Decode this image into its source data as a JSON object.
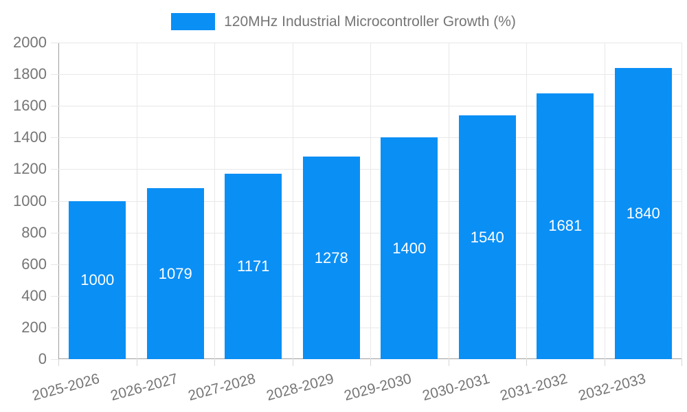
{
  "legend": {
    "label": "120MHz Industrial Microcontroller Growth (%)"
  },
  "chart_data": {
    "type": "bar",
    "title": "120MHz Industrial Microcontroller Growth (%)",
    "categories": [
      "2025-2026",
      "2026-2027",
      "2027-2028",
      "2028-2029",
      "2029-2030",
      "2030-2031",
      "2031-2032",
      "2032-2033"
    ],
    "values": [
      1000,
      1079,
      1171,
      1278,
      1400,
      1540,
      1681,
      1840
    ],
    "value_labels": [
      "1000",
      "1079",
      "1171",
      "1278",
      "1400",
      "1540",
      "1681",
      "1840"
    ],
    "xlabel": "",
    "ylabel": "",
    "ylim": [
      0,
      2000
    ],
    "ytick_step": 200,
    "yticks": [
      0,
      200,
      400,
      600,
      800,
      1000,
      1200,
      1400,
      1600,
      1800,
      2000
    ],
    "grid": true,
    "legend_position": "top-center",
    "x_label_rotation_deg": -15,
    "colors": {
      "bar": "#0a8ff5",
      "value_label": "#ffffff",
      "axis_text": "#757575",
      "title_text": "#757575",
      "gridline": "#e8e8e8",
      "axis_line": "#9e9e9e",
      "y_tick": "#e6e6e6",
      "x_tick": "#d6d6d6",
      "background": "#ffffff"
    }
  }
}
